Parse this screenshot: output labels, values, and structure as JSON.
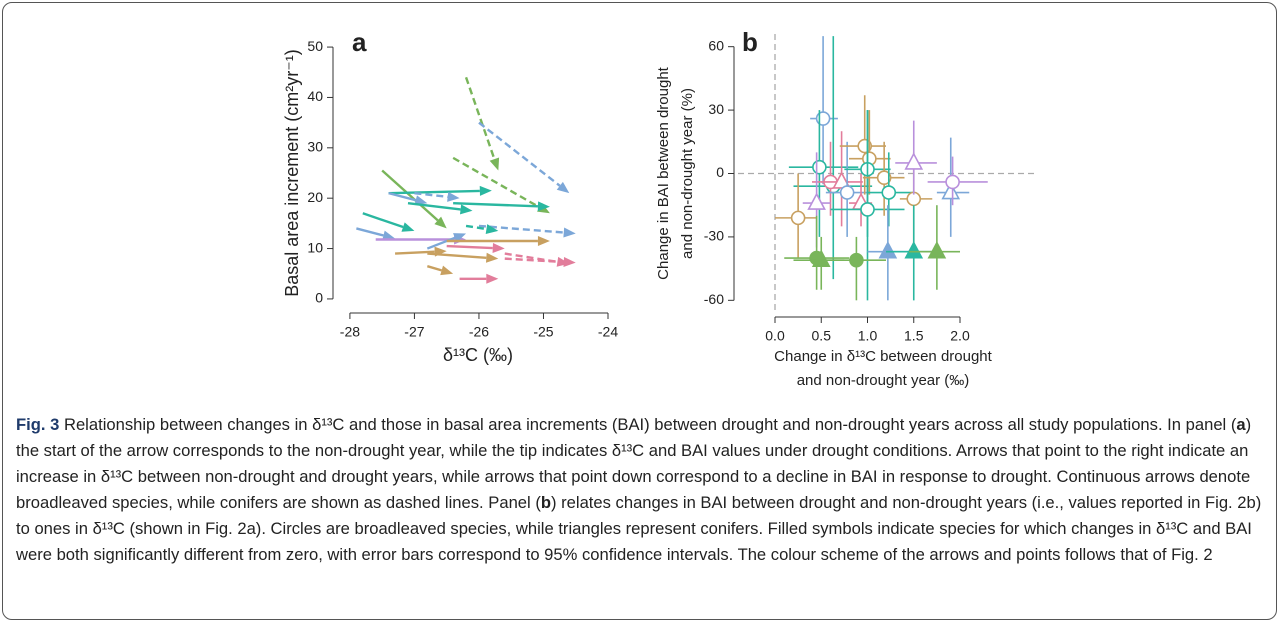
{
  "chart_data": [
    {
      "type": "arrow",
      "panel": "a",
      "xlabel": "δ¹³C (‰)",
      "ylabel": "Basal area increment (cm²yr⁻¹)",
      "xlim": [
        -28.2,
        -24
      ],
      "ylim": [
        -2,
        52
      ],
      "xticks": [
        -28,
        -27,
        -26,
        -25,
        -24
      ],
      "yticks": [
        0,
        10,
        20,
        30,
        40,
        50
      ],
      "arrows": [
        {
          "x0": -26.2,
          "y0": 44,
          "x1": -25.7,
          "y1": 25.5,
          "color": "#79b55a",
          "dashed": true
        },
        {
          "x0": -26.0,
          "y0": 35,
          "x1": -24.6,
          "y1": 21,
          "color": "#7ca7d8",
          "dashed": true
        },
        {
          "x0": -26.4,
          "y0": 28,
          "x1": -24.9,
          "y1": 17,
          "color": "#79b55a",
          "dashed": true
        },
        {
          "x0": -27.5,
          "y0": 25.5,
          "x1": -26.5,
          "y1": 14,
          "color": "#79b55a",
          "dashed": false
        },
        {
          "x0": -27.4,
          "y0": 21,
          "x1": -25.8,
          "y1": 21.5,
          "color": "#2ab7a0",
          "dashed": false
        },
        {
          "x0": -27.4,
          "y0": 21,
          "x1": -26.8,
          "y1": 19,
          "color": "#7ca7d8",
          "dashed": false
        },
        {
          "x0": -27.0,
          "y0": 21,
          "x1": -26.3,
          "y1": 20,
          "color": "#7ca7d8",
          "dashed": true
        },
        {
          "x0": -27.1,
          "y0": 19,
          "x1": -26.1,
          "y1": 17.5,
          "color": "#2ab7a0",
          "dashed": false
        },
        {
          "x0": -26.4,
          "y0": 19,
          "x1": -24.9,
          "y1": 18.3,
          "color": "#2ab7a0",
          "dashed": false
        },
        {
          "x0": -27.8,
          "y0": 17,
          "x1": -27.0,
          "y1": 13.5,
          "color": "#2ab7a0",
          "dashed": false
        },
        {
          "x0": -26.0,
          "y0": 14.5,
          "x1": -24.5,
          "y1": 13,
          "color": "#7ca7d8",
          "dashed": true
        },
        {
          "x0": -26.2,
          "y0": 14.5,
          "x1": -25.7,
          "y1": 13.5,
          "color": "#2ab7a0",
          "dashed": true
        },
        {
          "x0": -27.9,
          "y0": 14,
          "x1": -27.3,
          "y1": 12,
          "color": "#7ca7d8",
          "dashed": false
        },
        {
          "x0": -27.6,
          "y0": 11.8,
          "x1": -26.2,
          "y1": 11.8,
          "color": "#b990dc",
          "dashed": false
        },
        {
          "x0": -26.8,
          "y0": 10,
          "x1": -26.2,
          "y1": 13,
          "color": "#7ca7d8",
          "dashed": false
        },
        {
          "x0": -26.5,
          "y0": 11.5,
          "x1": -24.9,
          "y1": 11.5,
          "color": "#c8a060",
          "dashed": false
        },
        {
          "x0": -26.5,
          "y0": 10.5,
          "x1": -25.6,
          "y1": 10,
          "color": "#e27d9b",
          "dashed": false
        },
        {
          "x0": -27.3,
          "y0": 9,
          "x1": -26.5,
          "y1": 9.5,
          "color": "#c8a060",
          "dashed": false
        },
        {
          "x0": -26.8,
          "y0": 9,
          "x1": -25.7,
          "y1": 8,
          "color": "#c8a060",
          "dashed": false
        },
        {
          "x0": -25.6,
          "y0": 9,
          "x1": -24.6,
          "y1": 7,
          "color": "#e27d9b",
          "dashed": true
        },
        {
          "x0": -25.6,
          "y0": 8,
          "x1": -24.5,
          "y1": 7.2,
          "color": "#e27d9b",
          "dashed": true
        },
        {
          "x0": -26.8,
          "y0": 6.5,
          "x1": -26.4,
          "y1": 5,
          "color": "#c8a060",
          "dashed": false
        },
        {
          "x0": -26.3,
          "y0": 4,
          "x1": -25.7,
          "y1": 4,
          "color": "#e27d9b",
          "dashed": false
        }
      ]
    },
    {
      "type": "errorscatter",
      "panel": "b",
      "xlabel": [
        "Change in δ¹³C between drought",
        "and non-drought year (‰)"
      ],
      "ylabel": [
        "Change in BAI between drought",
        "and non-drought year (%)"
      ],
      "xlim": [
        -0.4,
        2.8
      ],
      "ylim": [
        -66,
        66
      ],
      "xticks": [
        {
          "value": 0,
          "label": "0.0"
        },
        {
          "value": 0.5,
          "label": "0.5"
        },
        {
          "value": 1,
          "label": "1.0"
        },
        {
          "value": 1.5,
          "label": "1.5"
        },
        {
          "value": 2,
          "label": "2.0"
        }
      ],
      "yticks": [
        -60,
        -30,
        0,
        30,
        60
      ],
      "vlines": [
        0
      ],
      "hlines": [
        0
      ],
      "points": [
        {
          "x": 0.52,
          "y": 26,
          "xlo": 0.38,
          "xhi": 0.68,
          "ylo": -5,
          "yhi": 65,
          "color": "#7ca7d8",
          "shape": "circle",
          "filled": false
        },
        {
          "x": 0.48,
          "y": 3,
          "xlo": 0.15,
          "xhi": 0.9,
          "ylo": -30,
          "yhi": 30,
          "color": "#2ab7a0",
          "shape": "circle",
          "filled": false
        },
        {
          "x": 0.63,
          "y": -6,
          "xlo": 0.2,
          "xhi": 1.05,
          "ylo": -50,
          "yhi": 65,
          "color": "#2ab7a0",
          "shape": "circle",
          "filled": false
        },
        {
          "x": 0.6,
          "y": -4,
          "xlo": 0.4,
          "xhi": 0.8,
          "ylo": -20,
          "yhi": 15,
          "color": "#e27d9b",
          "shape": "circle",
          "filled": false
        },
        {
          "x": 0.72,
          "y": -4,
          "xlo": 0.5,
          "xhi": 0.95,
          "ylo": -25,
          "yhi": 20,
          "color": "#e27d9b",
          "shape": "triangle",
          "filled": false
        },
        {
          "x": 0.45,
          "y": -14,
          "xlo": 0.3,
          "xhi": 0.6,
          "ylo": -35,
          "yhi": 10,
          "color": "#b990dc",
          "shape": "triangle",
          "filled": false
        },
        {
          "x": 0.78,
          "y": -9,
          "xlo": 0.55,
          "xhi": 1.0,
          "ylo": -30,
          "yhi": 15,
          "color": "#7ca7d8",
          "shape": "circle",
          "filled": false
        },
        {
          "x": 0.93,
          "y": -14,
          "xlo": 0.8,
          "xhi": 1.05,
          "ylo": -25,
          "yhi": 0,
          "color": "#e27d9b",
          "shape": "triangle",
          "filled": false
        },
        {
          "x": 0.97,
          "y": 13,
          "xlo": 0.7,
          "xhi": 1.2,
          "ylo": -10,
          "yhi": 37,
          "color": "#c8a060",
          "shape": "circle",
          "filled": false
        },
        {
          "x": 1.02,
          "y": 7,
          "xlo": 0.8,
          "xhi": 1.25,
          "ylo": -10,
          "yhi": 30,
          "color": "#c8a060",
          "shape": "circle",
          "filled": false
        },
        {
          "x": 1.0,
          "y": 2,
          "xlo": 0.75,
          "xhi": 1.25,
          "ylo": -30,
          "yhi": 30,
          "color": "#2ab7a0",
          "shape": "circle",
          "filled": false
        },
        {
          "x": 1.0,
          "y": -17,
          "xlo": 0.6,
          "xhi": 1.4,
          "ylo": -60,
          "yhi": 30,
          "color": "#2ab7a0",
          "shape": "circle",
          "filled": false
        },
        {
          "x": 1.18,
          "y": -2,
          "xlo": 0.95,
          "xhi": 1.4,
          "ylo": -20,
          "yhi": 15,
          "color": "#c8a060",
          "shape": "circle",
          "filled": false
        },
        {
          "x": 1.23,
          "y": -9,
          "xlo": 1.0,
          "xhi": 1.5,
          "ylo": -25,
          "yhi": 10,
          "color": "#2ab7a0",
          "shape": "circle",
          "filled": false
        },
        {
          "x": 1.5,
          "y": -12,
          "xlo": 1.35,
          "xhi": 1.7,
          "ylo": -35,
          "yhi": 10,
          "color": "#c8a060",
          "shape": "circle",
          "filled": false
        },
        {
          "x": 1.5,
          "y": 5,
          "xlo": 1.3,
          "xhi": 1.75,
          "ylo": -10,
          "yhi": 25,
          "color": "#b990dc",
          "shape": "triangle",
          "filled": false
        },
        {
          "x": 1.9,
          "y": -9,
          "xlo": 1.75,
          "xhi": 2.1,
          "ylo": -30,
          "yhi": 17,
          "color": "#7ca7d8",
          "shape": "triangle",
          "filled": false
        },
        {
          "x": 1.92,
          "y": -4,
          "xlo": 1.65,
          "xhi": 2.3,
          "ylo": -15,
          "yhi": 8,
          "color": "#b990dc",
          "shape": "circle",
          "filled": false
        },
        {
          "x": 0.25,
          "y": -21,
          "xlo": 0.0,
          "xhi": 0.45,
          "ylo": -40,
          "yhi": 0,
          "color": "#c8a060",
          "shape": "circle",
          "filled": false
        },
        {
          "x": 0.45,
          "y": -40,
          "xlo": 0.1,
          "xhi": 0.8,
          "ylo": -55,
          "yhi": -20,
          "color": "#79b55a",
          "shape": "circle",
          "filled": true
        },
        {
          "x": 0.5,
          "y": -41,
          "xlo": 0.2,
          "xhi": 0.75,
          "ylo": -55,
          "yhi": -30,
          "color": "#79b55a",
          "shape": "triangle",
          "filled": true
        },
        {
          "x": 0.88,
          "y": -41,
          "xlo": 0.5,
          "xhi": 1.2,
          "ylo": -60,
          "yhi": -30,
          "color": "#79b55a",
          "shape": "circle",
          "filled": true
        },
        {
          "x": 1.22,
          "y": -37,
          "xlo": 1.0,
          "xhi": 1.45,
          "ylo": -60,
          "yhi": -15,
          "color": "#7ca7d8",
          "shape": "triangle",
          "filled": true
        },
        {
          "x": 1.5,
          "y": -37,
          "xlo": 1.2,
          "xhi": 1.75,
          "ylo": -60,
          "yhi": -15,
          "color": "#2ab7a0",
          "shape": "triangle",
          "filled": true
        },
        {
          "x": 1.75,
          "y": -37,
          "xlo": 1.45,
          "xhi": 2.0,
          "ylo": -55,
          "yhi": -15,
          "color": "#79b55a",
          "shape": "triangle",
          "filled": true
        }
      ]
    }
  ],
  "caption": {
    "runs": [
      {
        "text": "Fig. 3",
        "bold": true
      },
      {
        "text": " Relationship between changes in δ¹³C and those in basal area increments (BAI) between drought and non-drought years across all study populations. In panel (",
        "bold": false
      },
      {
        "text": "a",
        "bold": true
      },
      {
        "text": ") the start of the arrow corresponds to the non-drought year, while the tip indicates δ¹³C and BAI values under drought conditions. Arrows that point to the right indicate an increase in δ¹³C between non-drought and drought years, while arrows that point down correspond to a decline in BAI in response to drought. Continuous arrows denote broadleaved species, while conifers are shown as dashed lines. Panel (",
        "bold": false
      },
      {
        "text": "b",
        "bold": true
      },
      {
        "text": ") relates changes in BAI between drought and non-drought years (i.e., values reported in Fig. 2b) to ones in δ¹³C (shown in Fig. 2a). Circles are broadleaved species, while triangles represent conifers. Filled symbols indicate species for which changes in δ¹³C and BAI were both significantly different from zero, with error bars correspond to 95% confidence intervals. The colour scheme of the arrows and points follows that of Fig. 2",
        "bold": false
      }
    ]
  }
}
